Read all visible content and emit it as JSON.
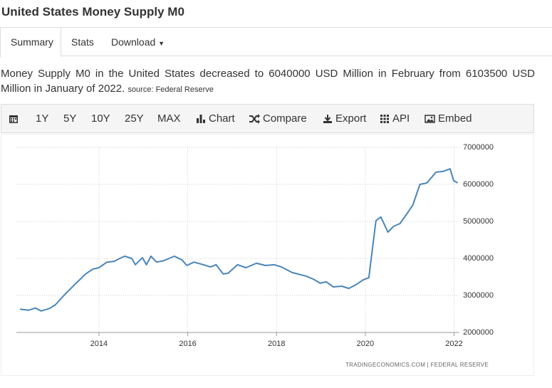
{
  "header": {
    "title": "United States Money Supply M0"
  },
  "tabs": [
    "Summary",
    "Stats",
    "Download"
  ],
  "description": {
    "text": "Money Supply M0 in the United States decreased to 6040000 USD Million in February from 6103500 USD Million in January of 2022.",
    "source": "source: Federal Reserve"
  },
  "toolbar": [
    "1Y",
    "5Y",
    "10Y",
    "25Y",
    "MAX",
    "Chart",
    "Compare",
    "Export",
    "API",
    "Embed"
  ],
  "chart_data": {
    "type": "line",
    "credit": "TRADINGECONOMICS.COM  |  FEDERAL RESERVE",
    "x": [
      2012.22,
      2012.41,
      2012.57,
      2012.7,
      2012.89,
      2013.02,
      2013.21,
      2013.45,
      2013.7,
      2013.86,
      2014.0,
      2014.18,
      2014.34,
      2014.47,
      2014.58,
      2014.74,
      2014.82,
      2014.98,
      2015.07,
      2015.17,
      2015.3,
      2015.46,
      2015.7,
      2015.87,
      2015.98,
      2016.14,
      2016.35,
      2016.51,
      2016.64,
      2016.8,
      2016.91,
      2017.12,
      2017.31,
      2017.55,
      2017.75,
      2017.95,
      2018.11,
      2018.35,
      2018.67,
      2018.83,
      2018.99,
      2019.12,
      2019.28,
      2019.47,
      2019.63,
      2019.79,
      2019.95,
      2020.08,
      2020.24,
      2020.35,
      2020.51,
      2020.64,
      2020.78,
      2020.94,
      2021.07,
      2021.23,
      2021.39,
      2021.59,
      2021.75,
      2021.91,
      2021.99,
      2022.08
    ],
    "series": [
      {
        "name": "Money Supply M0",
        "color": "#4a85b8",
        "values": [
          2630000,
          2600000,
          2660000,
          2580000,
          2650000,
          2750000,
          3000000,
          3290000,
          3580000,
          3710000,
          3750000,
          3900000,
          3920000,
          4000000,
          4060000,
          4000000,
          3830000,
          4020000,
          3830000,
          4060000,
          3900000,
          3940000,
          4060000,
          3960000,
          3810000,
          3900000,
          3830000,
          3770000,
          3830000,
          3580000,
          3600000,
          3830000,
          3750000,
          3870000,
          3810000,
          3830000,
          3770000,
          3620000,
          3520000,
          3440000,
          3330000,
          3370000,
          3230000,
          3250000,
          3190000,
          3290000,
          3420000,
          3480000,
          5020000,
          5120000,
          4710000,
          4870000,
          4940000,
          5210000,
          5440000,
          6000000,
          6040000,
          6330000,
          6350000,
          6420000,
          6103500,
          6040000
        ]
      }
    ],
    "xlim": [
      2012.14,
      2022.12
    ],
    "xticks": [
      2014,
      2016,
      2018,
      2020,
      2022
    ],
    "ylim": [
      2000000,
      7000000
    ],
    "yticks": [
      2000000,
      3000000,
      4000000,
      5000000,
      6000000,
      7000000
    ],
    "grid": true
  }
}
